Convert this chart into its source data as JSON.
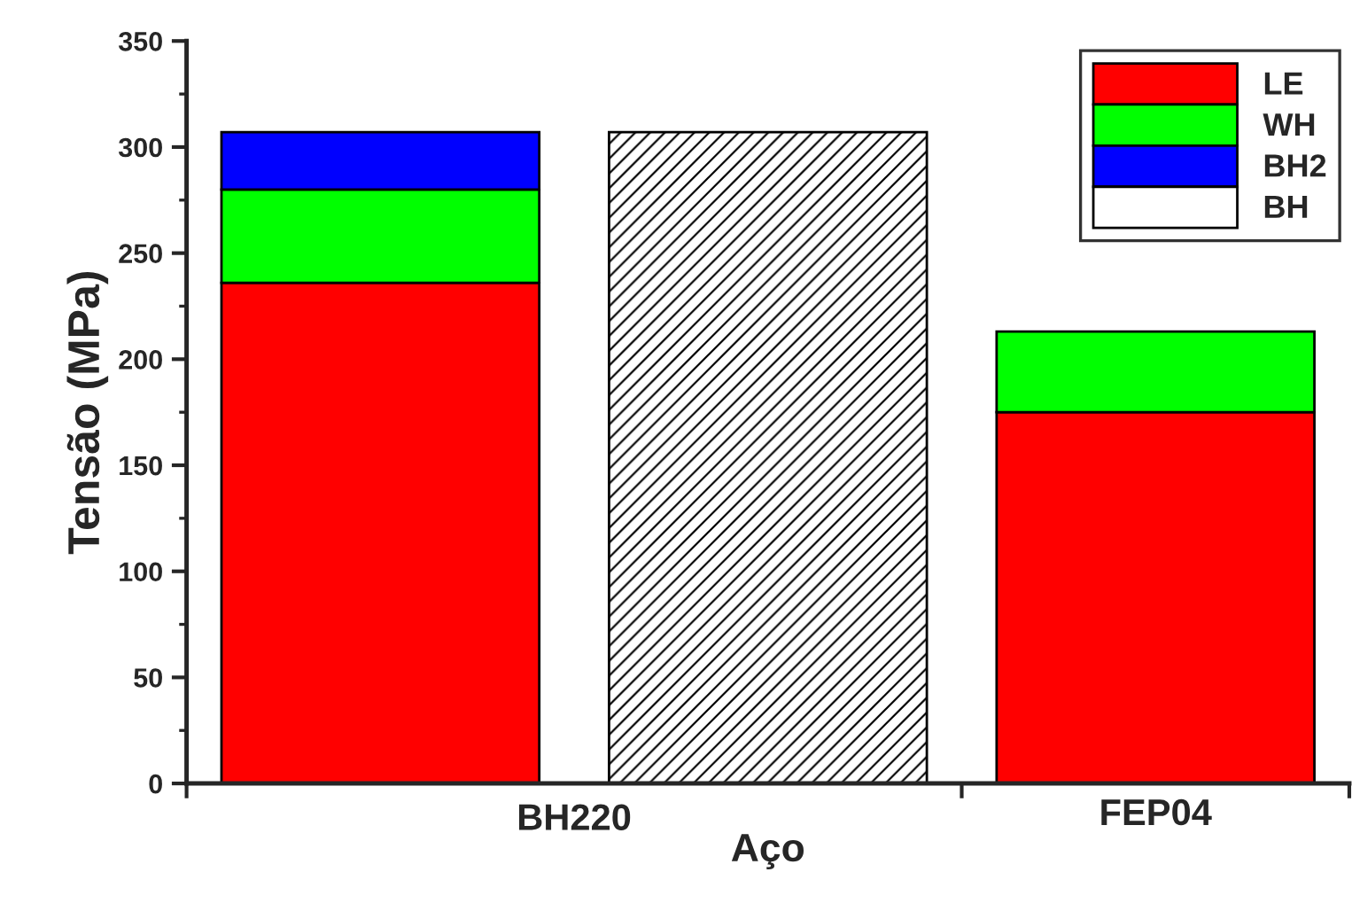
{
  "chart_data": {
    "type": "bar",
    "xlabel": "Aço",
    "ylabel": "Tensão (MPa)",
    "categories": [
      null,
      null,
      "FEP04"
    ],
    "annotations": [
      "BH220"
    ],
    "stacked": true,
    "series": [
      {
        "name": "LE",
        "color": "#ff0000",
        "values": [
          236,
          null,
          175
        ]
      },
      {
        "name": "WH",
        "color": "#00ff00",
        "values": [
          44,
          null,
          38
        ]
      },
      {
        "name": "BH2",
        "color": "#0000ff",
        "values": [
          27,
          null,
          null
        ]
      },
      {
        "name": "BH",
        "color": "#ffffff",
        "values": [
          null,
          307,
          null
        ]
      }
    ],
    "ylim": [
      0,
      350
    ],
    "yticks": [
      0,
      50,
      100,
      150,
      200,
      250,
      300,
      350
    ],
    "grid": false,
    "legend": "top right"
  }
}
